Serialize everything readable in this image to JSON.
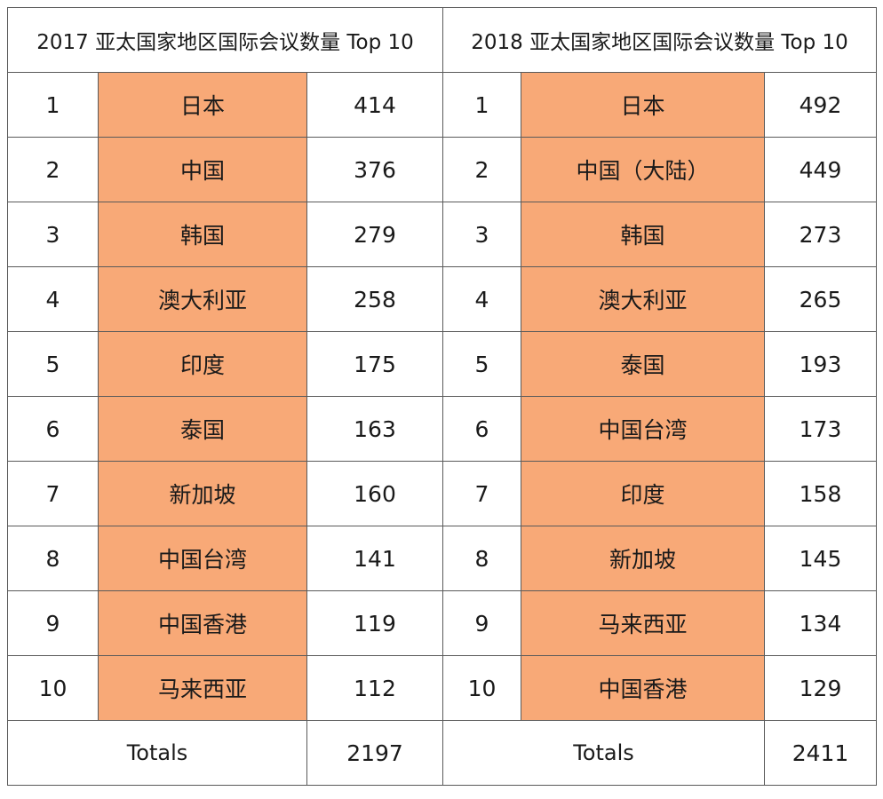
{
  "tables": [
    {
      "title": "2017 亚太国家地区国际会议数量 Top 10",
      "rows": [
        {
          "rank": "1",
          "name": "日本",
          "value": "414"
        },
        {
          "rank": "2",
          "name": "中国",
          "value": "376"
        },
        {
          "rank": "3",
          "name": "韩国",
          "value": "279"
        },
        {
          "rank": "4",
          "name": "澳大利亚",
          "value": "258"
        },
        {
          "rank": "5",
          "name": "印度",
          "value": "175"
        },
        {
          "rank": "6",
          "name": "泰国",
          "value": "163"
        },
        {
          "rank": "7",
          "name": "新加坡",
          "value": "160"
        },
        {
          "rank": "8",
          "name": "中国台湾",
          "value": "141"
        },
        {
          "rank": "9",
          "name": "中国香港",
          "value": "119"
        },
        {
          "rank": "10",
          "name": "马来西亚",
          "value": "112"
        }
      ],
      "totals_label": "Totals",
      "totals_value": "2197"
    },
    {
      "title": "2018 亚太国家地区国际会议数量 Top 10",
      "rows": [
        {
          "rank": "1",
          "name": "日本",
          "value": "492"
        },
        {
          "rank": "2",
          "name": "中国（大陆）",
          "value": "449"
        },
        {
          "rank": "3",
          "name": "韩国",
          "value": "273"
        },
        {
          "rank": "4",
          "name": "澳大利亚",
          "value": "265"
        },
        {
          "rank": "5",
          "name": "泰国",
          "value": "193"
        },
        {
          "rank": "6",
          "name": "中国台湾",
          "value": "173"
        },
        {
          "rank": "7",
          "name": "印度",
          "value": "158"
        },
        {
          "rank": "8",
          "name": "新加坡",
          "value": "145"
        },
        {
          "rank": "9",
          "name": "马来西亚",
          "value": "134"
        },
        {
          "rank": "10",
          "name": "中国香港",
          "value": "129"
        }
      ],
      "totals_label": "Totals",
      "totals_value": "2411"
    }
  ],
  "colors": {
    "name_cell_background": "#f8a977",
    "border": "#5a5a5a",
    "text": "#1a1a1a"
  },
  "chart_data": [
    {
      "type": "table",
      "title": "2017 亚太国家地区国际会议数量 Top 10",
      "columns": [
        "rank",
        "name",
        "value"
      ],
      "categories": [
        "日本",
        "中国",
        "韩国",
        "澳大利亚",
        "印度",
        "泰国",
        "新加坡",
        "中国台湾",
        "中国香港",
        "马来西亚"
      ],
      "values": [
        414,
        376,
        279,
        258,
        175,
        163,
        160,
        141,
        119,
        112
      ],
      "totals": 2197
    },
    {
      "type": "table",
      "title": "2018 亚太国家地区国际会议数量 Top 10",
      "columns": [
        "rank",
        "name",
        "value"
      ],
      "categories": [
        "日本",
        "中国（大陆）",
        "韩国",
        "澳大利亚",
        "泰国",
        "中国台湾",
        "印度",
        "新加坡",
        "马来西亚",
        "中国香港"
      ],
      "values": [
        492,
        449,
        273,
        265,
        193,
        173,
        158,
        145,
        134,
        129
      ],
      "totals": 2411
    }
  ]
}
